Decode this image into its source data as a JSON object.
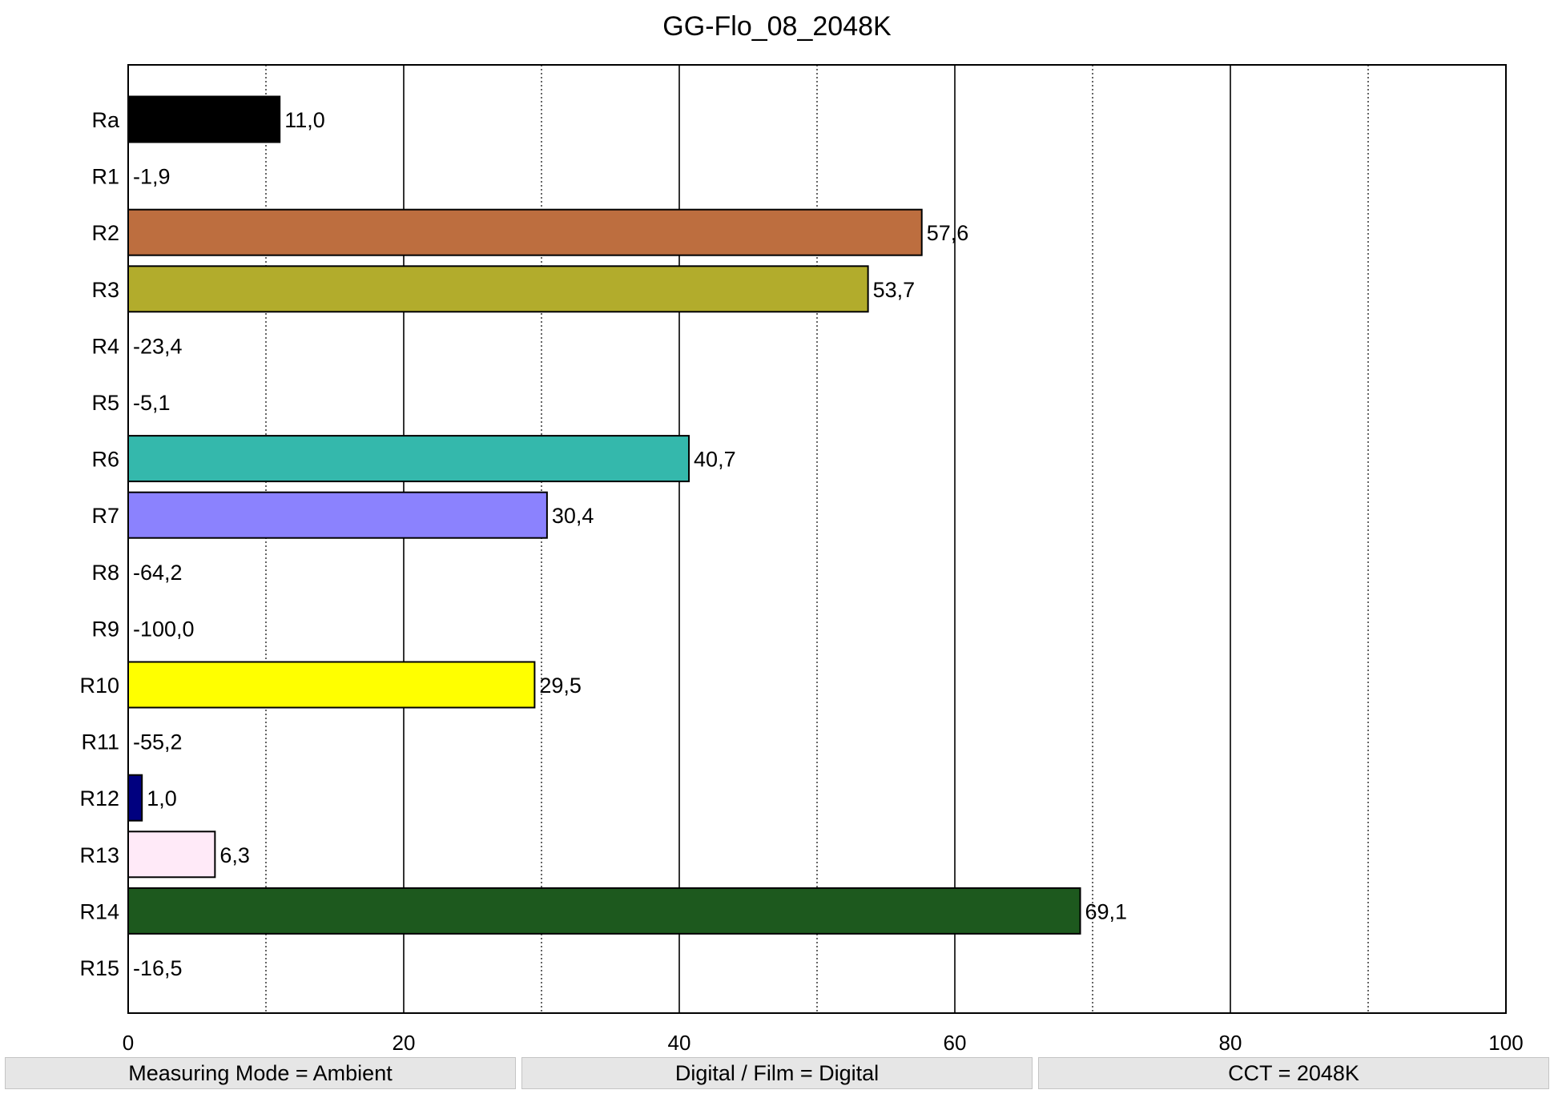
{
  "chart_data": {
    "type": "bar",
    "orientation": "horizontal",
    "title": "GG-Flo_08_2048K",
    "xlabel": "",
    "ylabel": "",
    "xlim": [
      0,
      100
    ],
    "x_ticks": [
      "0",
      "20",
      "40",
      "60",
      "80",
      "100"
    ],
    "x_tick_values": [
      0,
      20,
      40,
      60,
      80,
      100
    ],
    "major_grid_values": [
      20,
      40,
      60,
      80
    ],
    "minor_grid_values": [
      10,
      30,
      50,
      70,
      90
    ],
    "grid": true,
    "categories": [
      "Ra",
      "R1",
      "R2",
      "R3",
      "R4",
      "R5",
      "R6",
      "R7",
      "R8",
      "R9",
      "R10",
      "R11",
      "R12",
      "R13",
      "R14",
      "R15"
    ],
    "values": [
      11.0,
      -1.9,
      57.6,
      53.7,
      -23.4,
      -5.1,
      40.7,
      30.4,
      -64.2,
      -100.0,
      29.5,
      -55.2,
      1.0,
      6.3,
      69.1,
      -16.5
    ],
    "value_labels": [
      "11,0",
      "-1,9",
      "57,6",
      "53,7",
      "-23,4",
      "-5,1",
      "40,7",
      "30,4",
      "-64,2",
      "-100,0",
      "29,5",
      "-55,2",
      "1,0",
      "6,3",
      "69,1",
      "-16,5"
    ],
    "colors": [
      "#000000",
      "#e36a6a",
      "#bd6e3f",
      "#b2ac2c",
      "#7fcf5a",
      "#6ac7c0",
      "#34b8ac",
      "#8b82fe",
      "#d67dd6",
      "#ff0000",
      "#ffff00",
      "#1a8a2a",
      "#00007f",
      "#ffeaf8",
      "#1d591e",
      "#d9a57f"
    ]
  },
  "footer": {
    "measuring_mode": "Measuring Mode = Ambient",
    "digital_film": "Digital / Film = Digital",
    "cct": "CCT = 2048K"
  }
}
